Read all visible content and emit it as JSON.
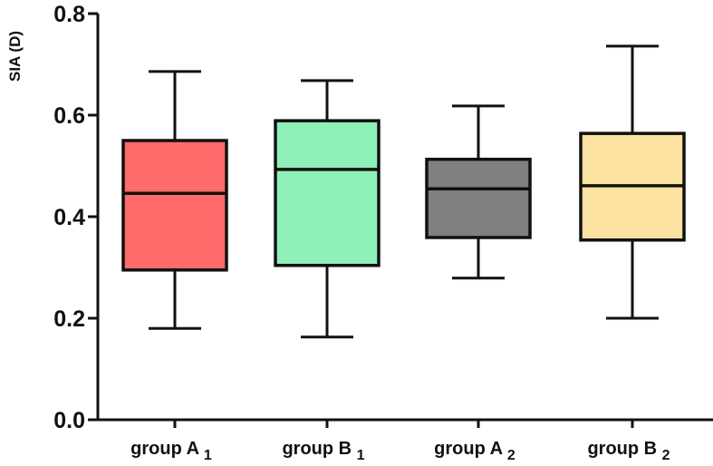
{
  "chart_data": {
    "type": "boxplot",
    "title": "",
    "xlabel": "",
    "ylabel": "SIA (D)",
    "ylim": [
      0.0,
      0.8
    ],
    "yticks": [
      "0.0",
      "0.2",
      "0.4",
      "0.6",
      "0.8"
    ],
    "grid": false,
    "legend": null,
    "categories": [
      {
        "label": "group A",
        "sub": "1"
      },
      {
        "label": "group B",
        "sub": "1"
      },
      {
        "label": "group A",
        "sub": "2"
      },
      {
        "label": "group B",
        "sub": "2"
      }
    ],
    "series": [
      {
        "name": "group A1",
        "color": "#ff6b6b",
        "min": 0.18,
        "q1": 0.295,
        "median": 0.446,
        "q3": 0.55,
        "max": 0.686
      },
      {
        "name": "group B1",
        "color": "#8ef0b8",
        "min": 0.163,
        "q1": 0.304,
        "median": 0.493,
        "q3": 0.589,
        "max": 0.668
      },
      {
        "name": "group A2",
        "color": "#808080",
        "min": 0.279,
        "q1": 0.359,
        "median": 0.455,
        "q3": 0.513,
        "max": 0.618
      },
      {
        "name": "group B2",
        "color": "#fce2a0",
        "min": 0.2,
        "q1": 0.354,
        "median": 0.461,
        "q3": 0.564,
        "max": 0.736
      }
    ]
  }
}
